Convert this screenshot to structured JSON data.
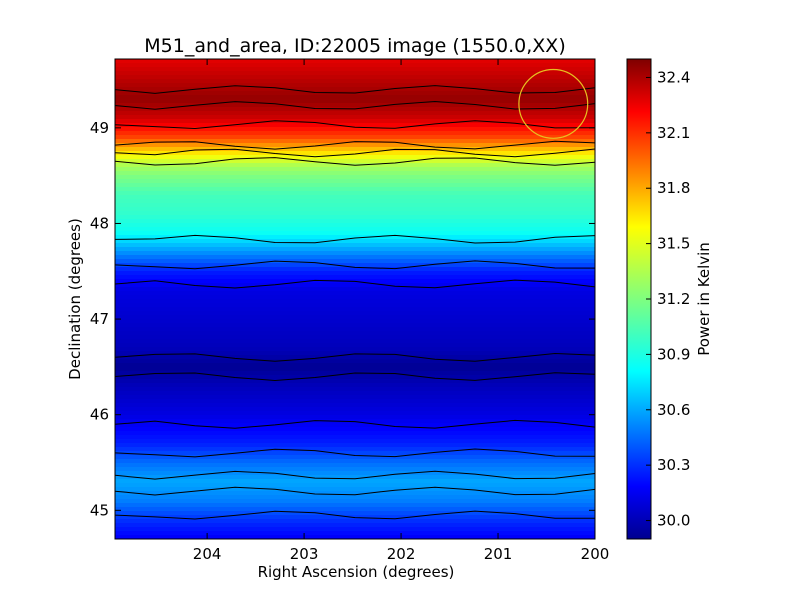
{
  "chart_data": {
    "type": "heatmap",
    "title": "M51_and_area, ID:22005 image (1550.0,XX)",
    "xlabel": "Right Ascension (degrees)",
    "ylabel": "Declination (degrees)",
    "colorbar_label": "Power in Kelvin",
    "colormap": "jet",
    "xlim": [
      204.95,
      200.0
    ],
    "ylim": [
      44.7,
      49.72
    ],
    "clim": [
      29.9,
      32.5
    ],
    "x_ticks": [
      204,
      203,
      202,
      201,
      200
    ],
    "y_ticks": [
      45,
      46,
      47,
      48,
      49
    ],
    "colorbar_ticks": [
      "30.0",
      "30.3",
      "30.6",
      "30.9",
      "31.2",
      "31.5",
      "31.8",
      "32.1",
      "32.4"
    ],
    "grid": false,
    "annotations": [
      {
        "type": "circle",
        "ra": 200.43,
        "dec": 49.25,
        "radius_deg": 0.36,
        "color": "#e8c020"
      }
    ],
    "declination_profile": {
      "dec": [
        49.7,
        49.5,
        49.3,
        49.1,
        49.0,
        48.9,
        48.8,
        48.7,
        48.6,
        48.5,
        48.3,
        48.1,
        47.9,
        47.7,
        47.5,
        47.3,
        47.0,
        46.7,
        46.5,
        46.3,
        46.0,
        45.7,
        45.5,
        45.3,
        45.1,
        44.9,
        44.7
      ],
      "power": [
        32.25,
        32.35,
        32.45,
        32.3,
        32.15,
        32.0,
        31.75,
        31.5,
        31.3,
        31.2,
        31.05,
        31.0,
        30.9,
        30.6,
        30.3,
        30.15,
        30.1,
        30.05,
        29.95,
        30.05,
        30.15,
        30.3,
        30.5,
        30.65,
        30.55,
        30.35,
        30.2
      ]
    }
  }
}
